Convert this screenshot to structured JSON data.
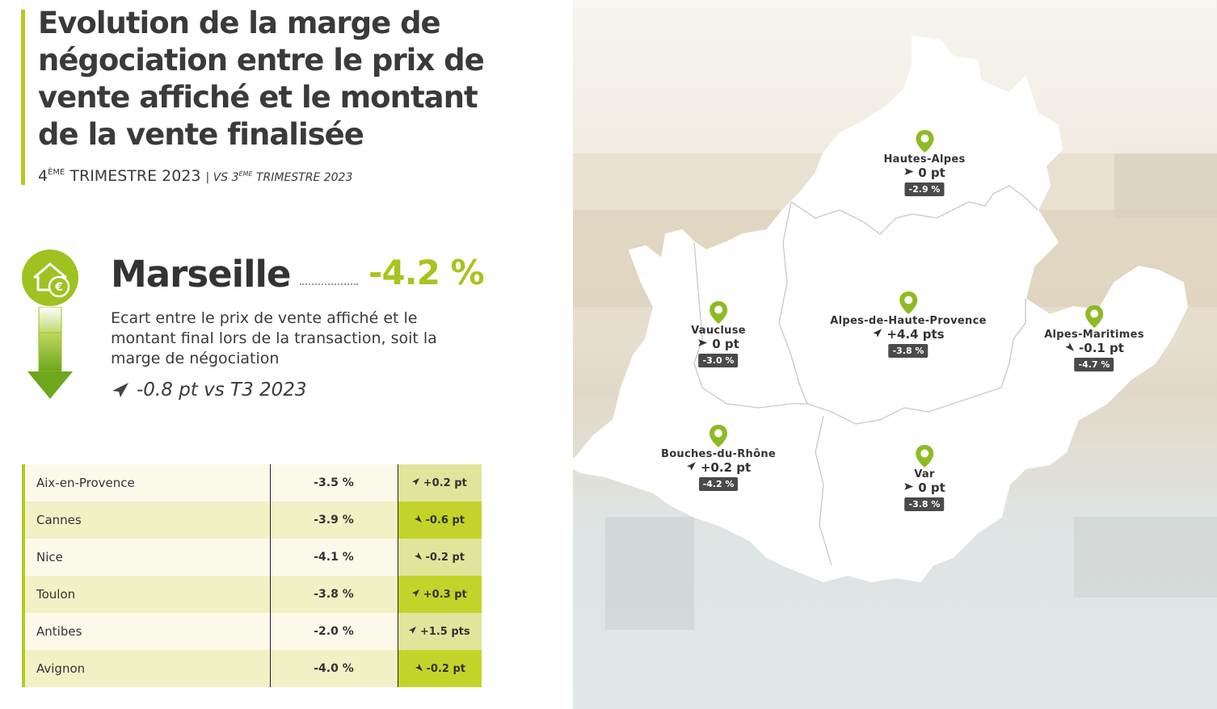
{
  "header": {
    "title": "Evolution de la marge de négociation entre le prix de vente affiché et le montant de la vente finalisée",
    "period_prefix": "4",
    "period_sup": "ÈME",
    "period_suffix": " TRIMESTRE 2023",
    "compare_prefix": "| VS 3",
    "compare_sup": "ÈME",
    "compare_suffix": " TRIMESTRE 2023"
  },
  "main": {
    "city": "Marseille",
    "value": "-4.2 %",
    "description": "Ecart entre le prix de vente affiché et le montant final lors de la transaction, soit la marge de négociation",
    "evolution": "-0.8 pt vs T3 2023"
  },
  "cities_table": [
    {
      "name": "Aix-en-Provence",
      "value": "-3.5 %",
      "evolution": "+0.2 pt",
      "trend": "up"
    },
    {
      "name": "Cannes",
      "value": "-3.9 %",
      "evolution": "-0.6 pt",
      "trend": "down"
    },
    {
      "name": "Nice",
      "value": "-4.1 %",
      "evolution": "-0.2 pt",
      "trend": "down"
    },
    {
      "name": "Toulon",
      "value": "-3.8 %",
      "evolution": "+0.3 pt",
      "trend": "up"
    },
    {
      "name": "Antibes",
      "value": "-2.0 %",
      "evolution": "+1.5 pts",
      "trend": "up"
    },
    {
      "name": "Avignon",
      "value": "-4.0 %",
      "evolution": "-0.2 pt",
      "trend": "down"
    }
  ],
  "map": {
    "departments": [
      {
        "name": "Hautes-Alpes",
        "evolution": "0 pt",
        "trend": "flat",
        "value": "-2.9 %"
      },
      {
        "name": "Alpes-de-Haute-Provence",
        "evolution": "+4.4 pts",
        "trend": "up",
        "value": "-3.8 %"
      },
      {
        "name": "Vaucluse",
        "evolution": "0 pt",
        "trend": "flat",
        "value": "-3.0 %"
      },
      {
        "name": "Alpes-Maritimes",
        "evolution": "-0.1 pt",
        "trend": "down",
        "value": "-4.7 %"
      },
      {
        "name": "Bouches-du-Rhône",
        "evolution": "+0.2 pt",
        "trend": "up",
        "value": "-4.2 %"
      },
      {
        "name": "Var",
        "evolution": "0 pt",
        "trend": "flat",
        "value": "-3.8 %"
      }
    ]
  },
  "colors": {
    "accent": "#a7c41e",
    "accent_dark": "#c4d32a",
    "text": "#333333",
    "badge": "#4a4a4a"
  }
}
